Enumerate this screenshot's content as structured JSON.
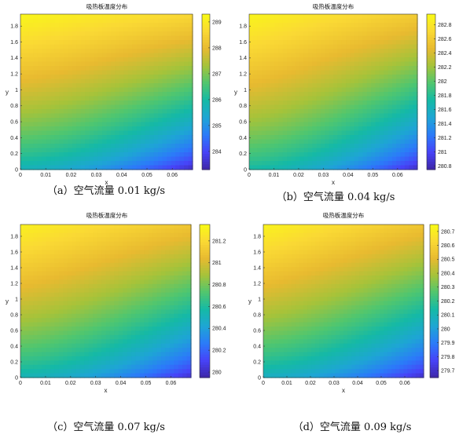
{
  "colormap": [
    "#3e26a8",
    "#4743f8",
    "#2b7bf9",
    "#1ea5d5",
    "#15b9a6",
    "#50c66f",
    "#a5c33a",
    "#e8ba30",
    "#fad934",
    "#f9fb15"
  ],
  "chart_data": [
    {
      "type": "heatmap",
      "title": "吸热板温度分布",
      "xlabel": "x",
      "ylabel": "y",
      "caption": "（a）空气流量 0.01 kg/s",
      "xlim": [
        0,
        0.068
      ],
      "ylim": [
        0,
        1.95
      ],
      "x_ticks": [
        0,
        0.01,
        0.02,
        0.03,
        0.04,
        0.05,
        0.06
      ],
      "x_tick_labels": [
        "0",
        "0.01",
        "0.02",
        "0.03",
        "0.04",
        "0.05",
        "0.06"
      ],
      "y_ticks": [
        0,
        0.2,
        0.4,
        0.6,
        0.8,
        1,
        1.2,
        1.4,
        1.6,
        1.8
      ],
      "y_tick_labels": [
        "0",
        "0.2",
        "0.4",
        "0.6",
        "0.8",
        "1",
        "1.2",
        "1.4",
        "1.6",
        "1.8"
      ],
      "clim": [
        283.3,
        289.3
      ],
      "colorbar_ticks": [
        284,
        285,
        286,
        287,
        288,
        289
      ],
      "colorbar_tick_labels": [
        "284",
        "285",
        "286",
        "287",
        "288",
        "289"
      ],
      "corner_values": {
        "top_left": 289.2,
        "top_right": 288.6,
        "bottom_left": 285.6,
        "bottom_right": 283.4
      }
    },
    {
      "type": "heatmap",
      "title": "吸热板温度分布",
      "xlabel": "x",
      "ylabel": "y",
      "caption": "（b）空气流量 0.04 kg/s",
      "xlim": [
        0,
        0.068
      ],
      "ylim": [
        0,
        1.95
      ],
      "x_ticks": [
        0,
        0.01,
        0.02,
        0.03,
        0.04,
        0.05,
        0.06
      ],
      "x_tick_labels": [
        "0",
        "0.01",
        "0.02",
        "0.03",
        "0.04",
        "0.05",
        "0.06"
      ],
      "y_ticks": [
        0,
        0.2,
        0.4,
        0.6,
        0.8,
        1,
        1.2,
        1.4,
        1.6,
        1.8
      ],
      "y_tick_labels": [
        "0",
        "0.2",
        "0.4",
        "0.6",
        "0.8",
        "1",
        "1.2",
        "1.4",
        "1.6",
        "1.8"
      ],
      "clim": [
        280.75,
        282.95
      ],
      "colorbar_ticks": [
        280.8,
        281,
        281.2,
        281.4,
        281.6,
        281.8,
        282,
        282.2,
        282.4,
        282.6,
        282.8
      ],
      "colorbar_tick_labels": [
        "280.8",
        "281",
        "281.2",
        "281.4",
        "281.6",
        "281.8",
        "282",
        "282.2",
        "282.4",
        "282.6",
        "282.8"
      ],
      "corner_values": {
        "top_left": 282.9,
        "top_right": 282.6,
        "bottom_left": 281.7,
        "bottom_right": 280.8
      }
    },
    {
      "type": "heatmap",
      "title": "吸热板温度分布",
      "xlabel": "x",
      "ylabel": "y",
      "caption": "（c）空气流量 0.07 kg/s",
      "xlim": [
        0,
        0.068
      ],
      "ylim": [
        0,
        1.95
      ],
      "x_ticks": [
        0,
        0.01,
        0.02,
        0.03,
        0.04,
        0.05,
        0.06
      ],
      "x_tick_labels": [
        "0",
        "0.01",
        "0.02",
        "0.03",
        "0.04",
        "0.05",
        "0.06"
      ],
      "y_ticks": [
        0,
        0.2,
        0.4,
        0.6,
        0.8,
        1,
        1.2,
        1.4,
        1.6,
        1.8
      ],
      "y_tick_labels": [
        "0",
        "0.2",
        "0.4",
        "0.6",
        "0.8",
        "1",
        "1.2",
        "1.4",
        "1.6",
        "1.8"
      ],
      "clim": [
        279.95,
        281.35
      ],
      "colorbar_ticks": [
        280,
        280.2,
        280.4,
        280.6,
        280.8,
        281,
        281.2
      ],
      "colorbar_tick_labels": [
        "280",
        "280.2",
        "280.4",
        "280.6",
        "280.8",
        "281",
        "281.2"
      ],
      "corner_values": {
        "top_left": 281.3,
        "top_right": 281.1,
        "bottom_left": 280.5,
        "bottom_right": 280.0
      }
    },
    {
      "type": "heatmap",
      "title": "吸热板温度分布",
      "xlabel": "x",
      "ylabel": "y",
      "caption": "（d）空气流量 0.09 kg/s",
      "xlim": [
        0,
        0.068
      ],
      "ylim": [
        0,
        1.95
      ],
      "x_ticks": [
        0,
        0.01,
        0.02,
        0.03,
        0.04,
        0.05,
        0.06
      ],
      "x_tick_labels": [
        "0",
        "0.01",
        "0.02",
        "0.03",
        "0.04",
        "0.05",
        "0.06"
      ],
      "y_ticks": [
        0,
        0.2,
        0.4,
        0.6,
        0.8,
        1,
        1.2,
        1.4,
        1.6,
        1.8
      ],
      "y_tick_labels": [
        "0",
        "0.2",
        "0.4",
        "0.6",
        "0.8",
        "1",
        "1.2",
        "1.4",
        "1.6",
        "1.8"
      ],
      "clim": [
        279.65,
        280.75
      ],
      "colorbar_ticks": [
        279.7,
        279.8,
        279.9,
        280,
        280.1,
        280.2,
        280.3,
        280.4,
        280.5,
        280.6,
        280.7
      ],
      "colorbar_tick_labels": [
        "279.7",
        "279.8",
        "279.9",
        "280",
        "280.1",
        "280.2",
        "280.3",
        "280.4",
        "280.5",
        "280.6",
        "280.7"
      ],
      "corner_values": {
        "top_left": 280.72,
        "top_right": 280.55,
        "bottom_left": 280.05,
        "bottom_right": 279.68
      }
    }
  ]
}
